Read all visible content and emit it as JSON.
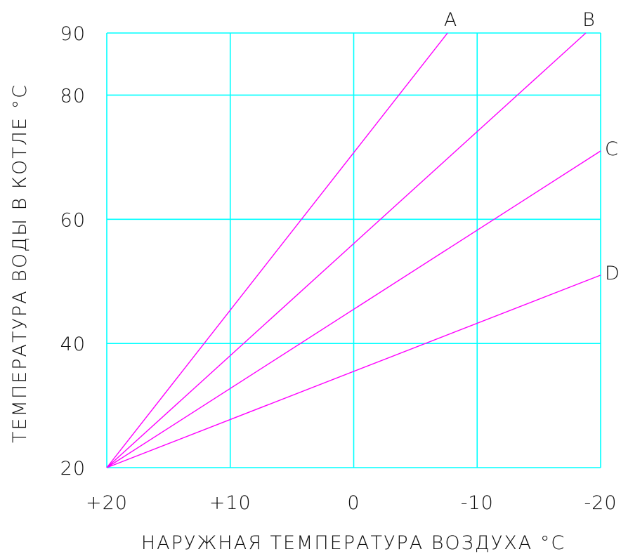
{
  "chart_data": {
    "type": "line",
    "title": "",
    "xlabel": "НАРУЖНАЯ ТЕМПЕРАТУРА ВОЗДУХА °С",
    "ylabel": "ТЕМПЕРАТУРА ВОДЫ В КОТЛЕ °С",
    "xlim": [
      20,
      -20
    ],
    "ylim": [
      20,
      90
    ],
    "x_tick_values": [
      20,
      10,
      0,
      -10,
      -20
    ],
    "x_tick_labels": [
      "+20",
      "+10",
      "0",
      "-10",
      "-20"
    ],
    "y_tick_values": [
      20,
      40,
      60,
      80,
      90
    ],
    "y_tick_labels": [
      "20",
      "40",
      "60",
      "80",
      "90"
    ],
    "x_grid": [
      20,
      10,
      0,
      -10,
      -20
    ],
    "y_grid": [
      20,
      40,
      60,
      80,
      90
    ],
    "grid": true,
    "legend": "none",
    "series": [
      {
        "name": "A",
        "x": [
          20,
          -7.6
        ],
        "y": [
          20,
          90
        ]
      },
      {
        "name": "B",
        "x": [
          20,
          -18.8
        ],
        "y": [
          20,
          90
        ]
      },
      {
        "name": "C",
        "x": [
          20,
          -20
        ],
        "y": [
          20,
          71
        ]
      },
      {
        "name": "D",
        "x": [
          20,
          -20
        ],
        "y": [
          20,
          51
        ]
      }
    ],
    "colors": {
      "grid": "#00ffff",
      "line": "#ff00ff",
      "text": "#111111"
    }
  }
}
